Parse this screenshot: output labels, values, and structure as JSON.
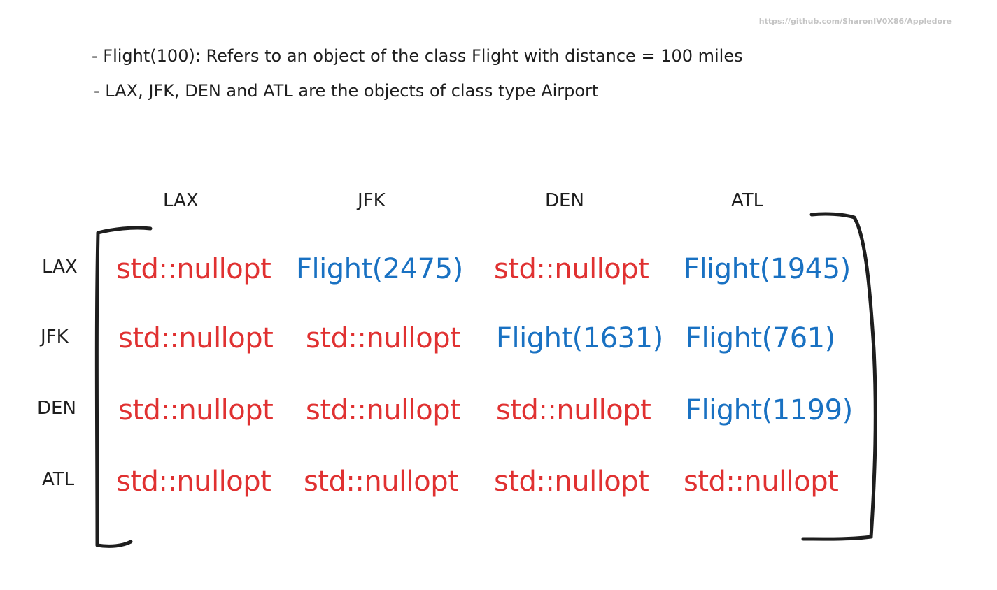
{
  "watermark": "https://github.com/SharonIV0X86/Appledore",
  "notes": [
    "- Flight(100): Refers to an object of the class Flight with distance = 100 miles",
    "- LAX, JFK, DEN and ATL are the objects of class type Airport"
  ],
  "matrix": {
    "column_headers": [
      "LAX",
      "JFK",
      "DEN",
      "ATL"
    ],
    "row_headers": [
      "LAX",
      "JFK",
      "DEN",
      "ATL"
    ],
    "rows": [
      [
        "std::nullopt",
        "Flight(2475)",
        "std::nullopt",
        "Flight(1945)"
      ],
      [
        "std::nullopt",
        "std::nullopt",
        "Flight(1631)",
        "Flight(761)"
      ],
      [
        "std::nullopt",
        "std::nullopt",
        "std::nullopt",
        "Flight(1199)"
      ],
      [
        "std::nullopt",
        "std::nullopt",
        "std::nullopt",
        "std::nullopt"
      ]
    ],
    "colors": {
      "nullopt": "#e03131",
      "flight": "#1971c2",
      "text": "#1e1e1e",
      "bracket": "#1e1e1e"
    }
  }
}
